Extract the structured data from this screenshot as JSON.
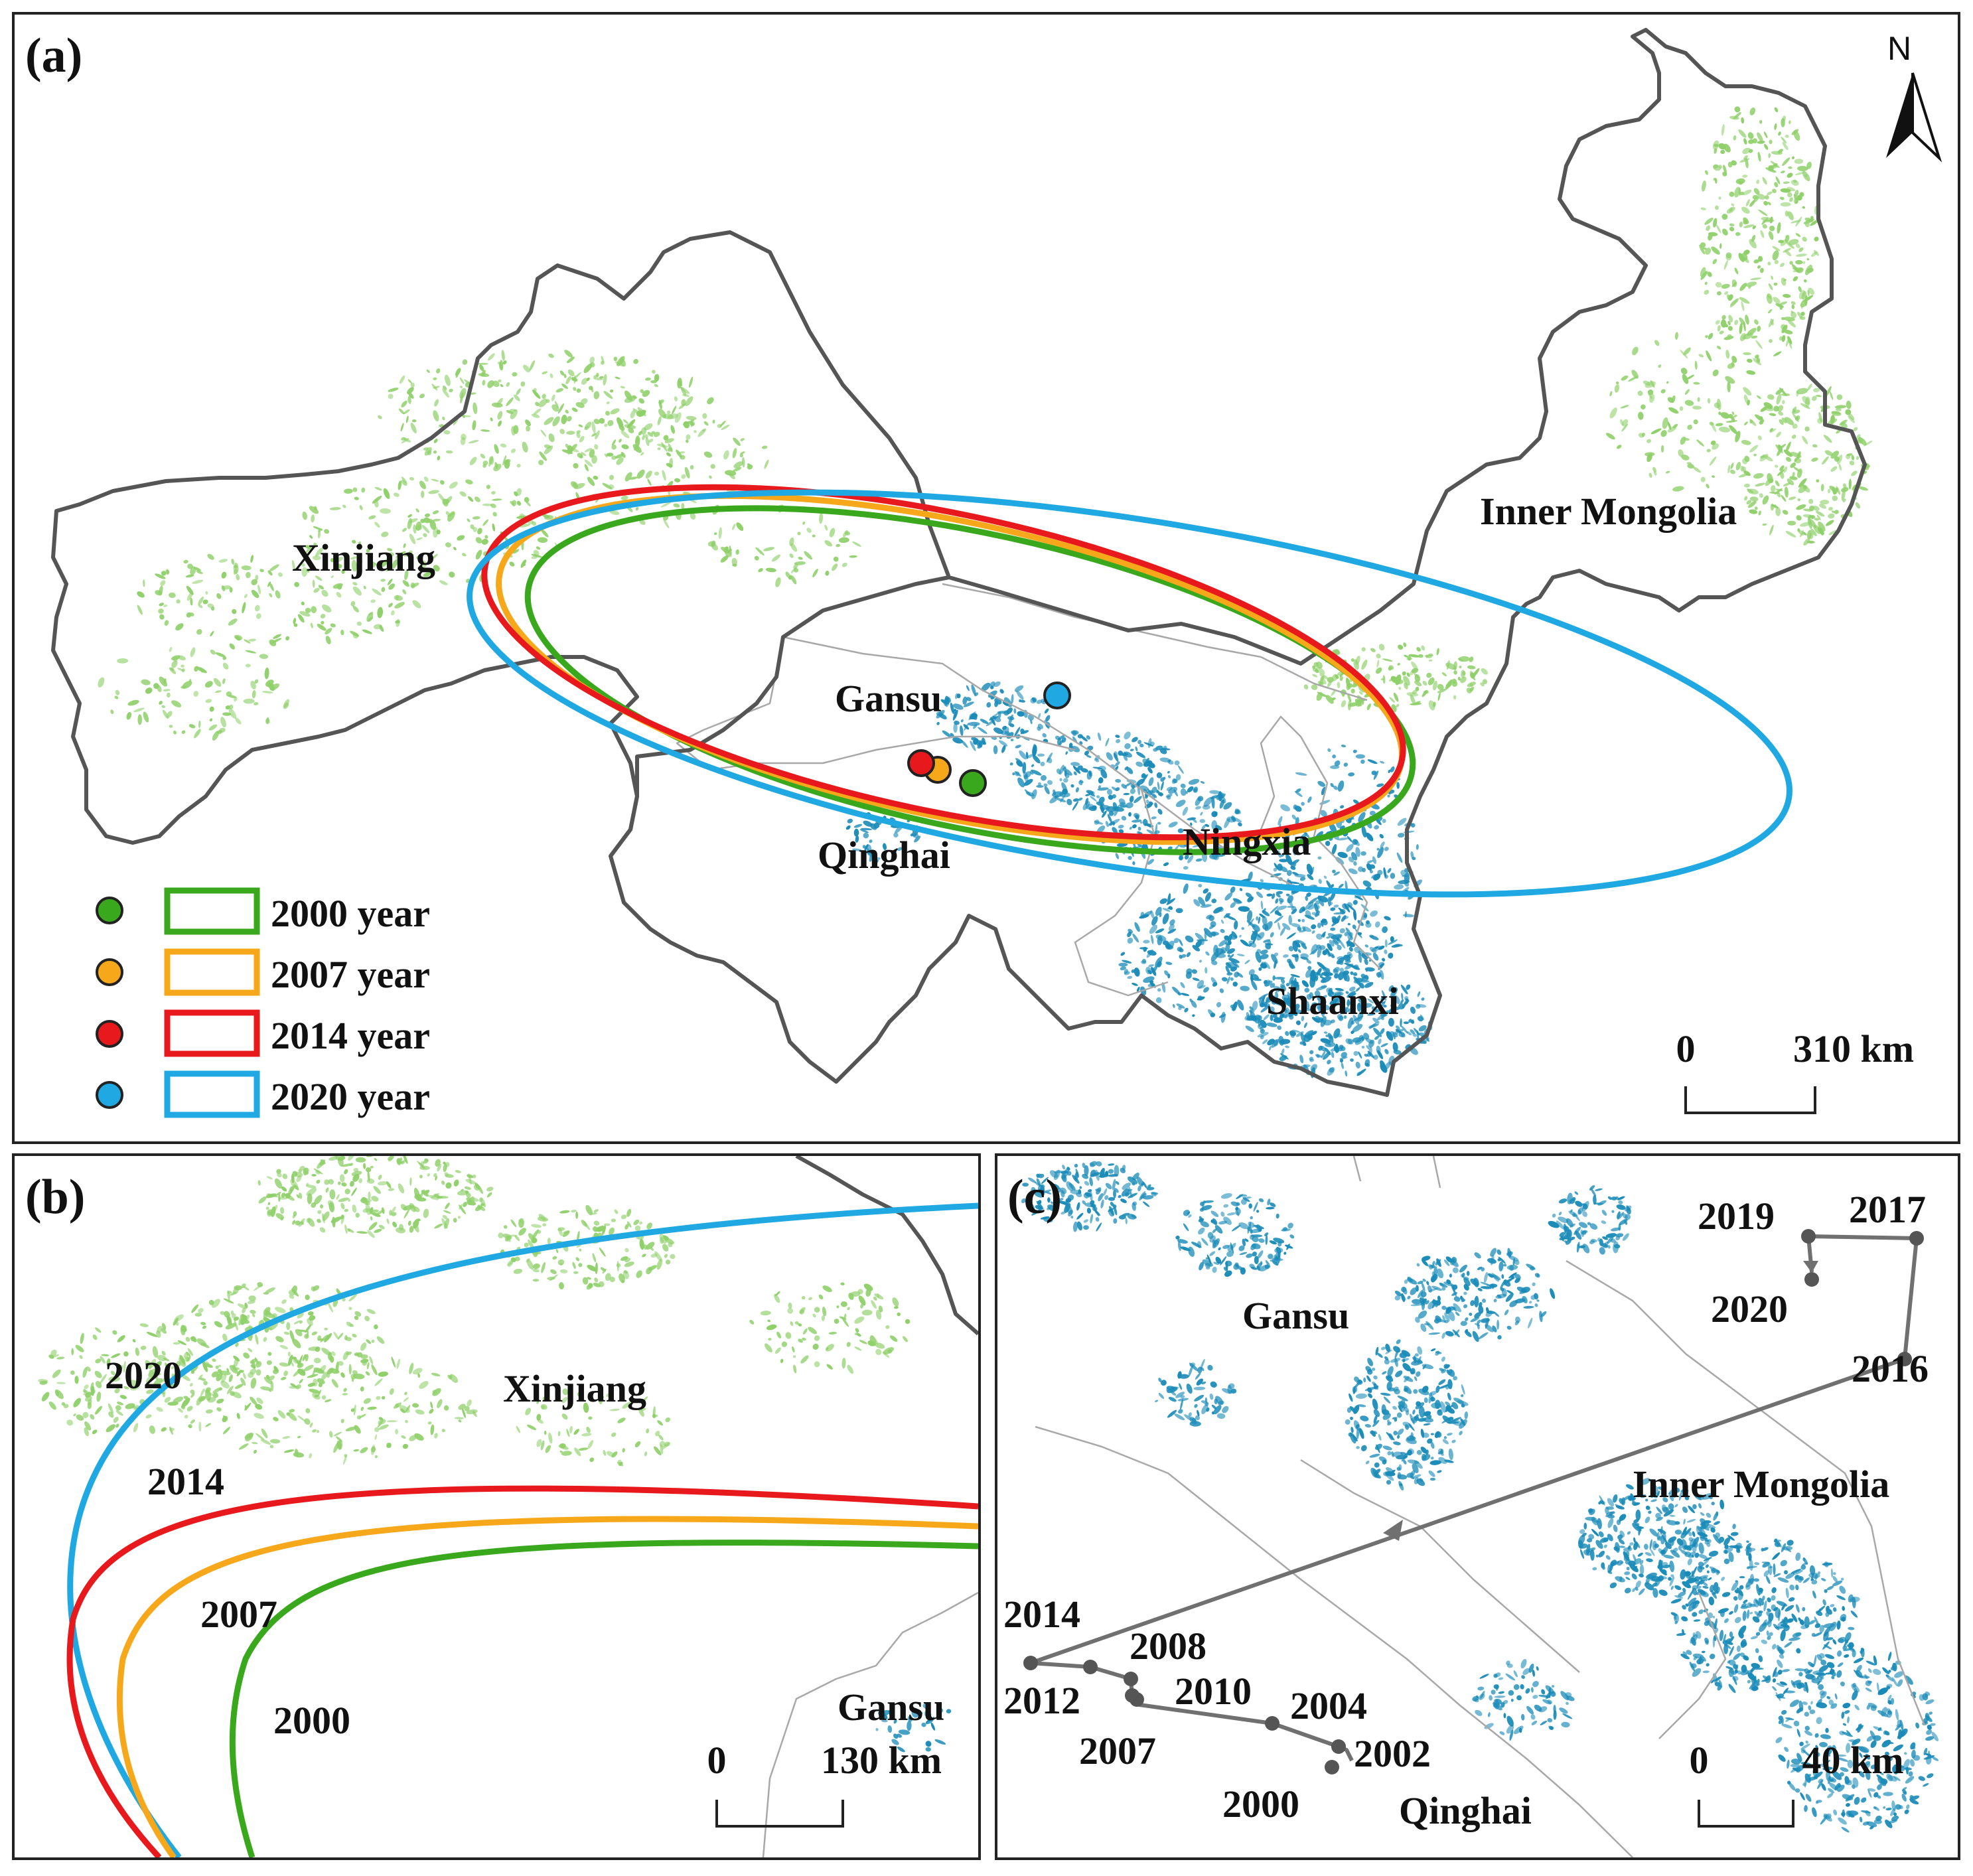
{
  "panel_a": {
    "tag": "(a)",
    "north": "N",
    "provinces": {
      "xinjiang": "Xinjiang",
      "inner_mongolia": "Inner Mongolia",
      "gansu": "Gansu",
      "qinghai": "Qinghai",
      "ningxia": "Ningxia",
      "shaanxi": "Shaanxi"
    },
    "legend": [
      {
        "label": "2000 year",
        "color": "#3aa81d"
      },
      {
        "label": "2007 year",
        "color": "#f6a81a"
      },
      {
        "label": "2014 year",
        "color": "#e8191c"
      },
      {
        "label": "2020 year",
        "color": "#1fa8e2"
      }
    ],
    "scale": {
      "start": "0",
      "end": "310 km"
    }
  },
  "panel_b": {
    "tag": "(b)",
    "region_xinjiang": "Xinjiang",
    "region_gansu": "Gansu",
    "years": {
      "y2020": "2020",
      "y2014": "2014",
      "y2007": "2007",
      "y2000": "2000"
    },
    "scale": {
      "start": "0",
      "end": "130 km"
    }
  },
  "panel_c": {
    "tag": "(c)",
    "region_gansu": "Gansu",
    "region_inner_mongolia": "Inner Mongolia",
    "region_qinghai": "Qinghai",
    "trajectory_years": [
      "2000",
      "2002",
      "2004",
      "2007",
      "2008",
      "2010",
      "2012",
      "2014",
      "2016",
      "2017",
      "2019",
      "2020"
    ],
    "scale": {
      "start": "0",
      "end": "40 km"
    }
  },
  "colors": {
    "green_vegetation": "#8fd06a",
    "blue_vegetation": "#1a8bb8",
    "trajectory": "#707070",
    "trajectory_points": "#555555"
  }
}
